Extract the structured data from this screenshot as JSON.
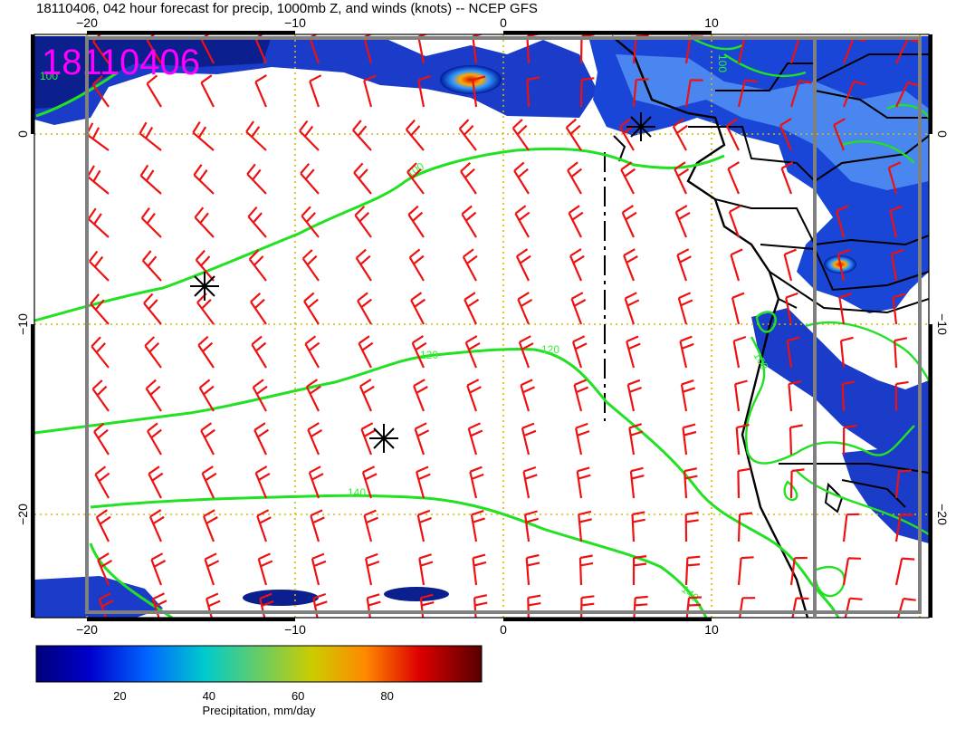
{
  "header": {
    "title": "18110406, 042 hour forecast for precip, 1000mb Z, and winds (knots) -- NCEP GFS",
    "stamp": "18110406"
  },
  "axes": {
    "x_ticks_bottom": [
      "−20",
      "−10",
      "0",
      "10"
    ],
    "x_ticks_top": [
      "−20",
      "−10",
      "0",
      "10"
    ],
    "y_ticks_left": [
      "0",
      "−10",
      "−20"
    ],
    "y_ticks_right": [
      "0",
      "−10",
      "−20"
    ]
  },
  "contours": {
    "labels": [
      "100",
      "120",
      "120",
      "140",
      "140",
      "100",
      "100",
      "100"
    ]
  },
  "colorbar": {
    "label": "Precipitation, mm/day",
    "ticks": [
      "20",
      "40",
      "60",
      "80"
    ],
    "range": [
      0,
      100
    ]
  },
  "colors": {
    "contour": "#22e022",
    "barb": "#ee1111",
    "grid": "#d4b800",
    "stamp": "#ff00ff",
    "frame": "#808080"
  },
  "legend_icons": {
    "centers": "asterisk-icon",
    "wind": "wind-barb-icon"
  }
}
